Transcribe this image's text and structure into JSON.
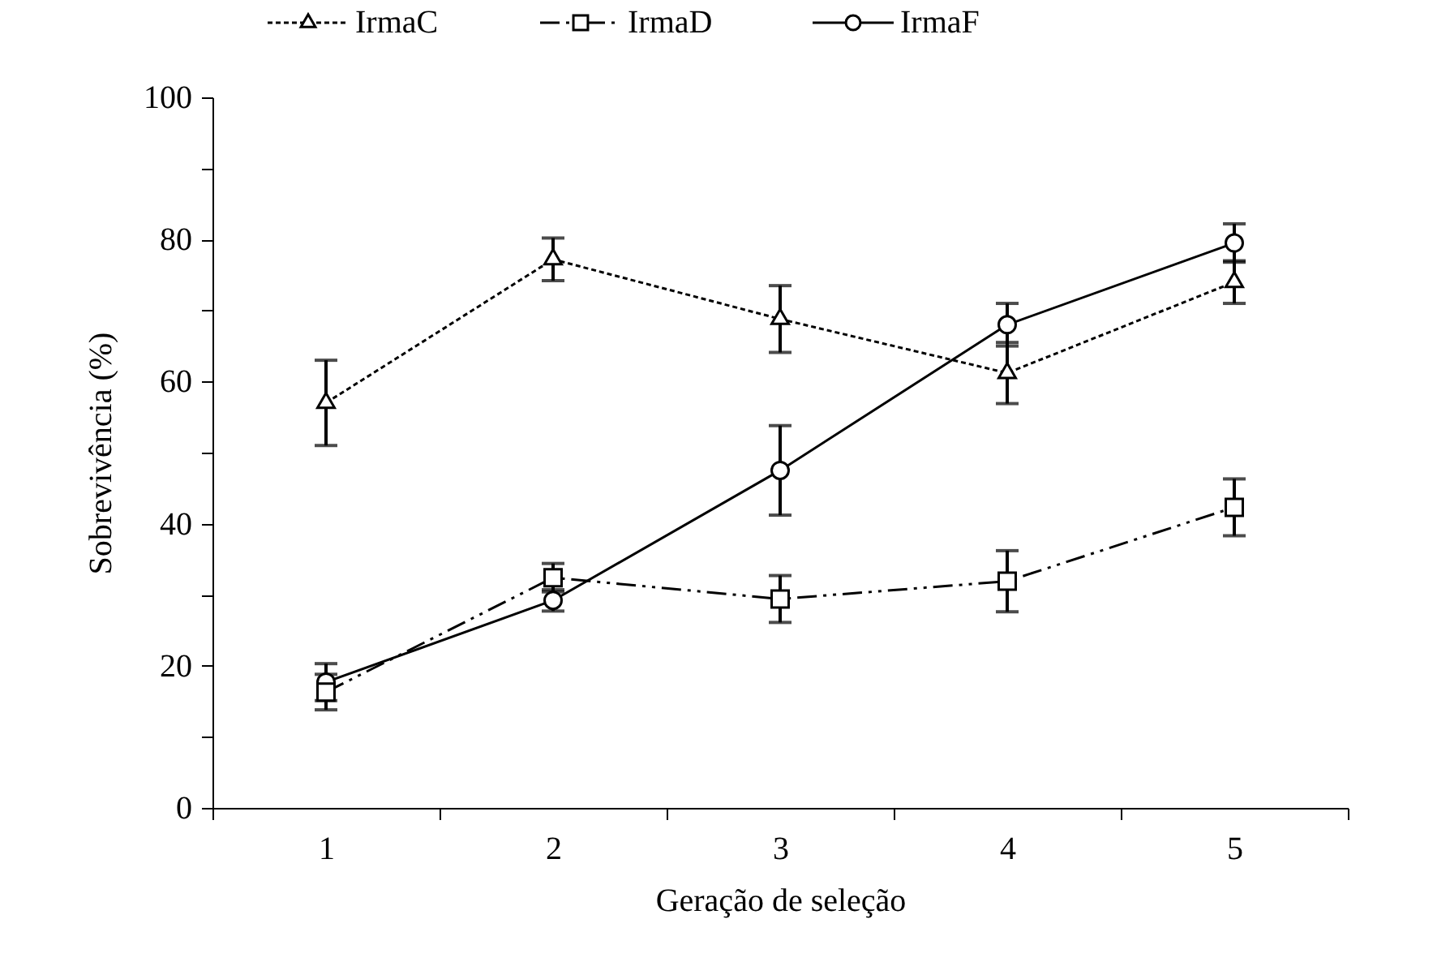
{
  "chart_data": {
    "type": "line",
    "xlabel": "Geração de seleção",
    "ylabel": "Sobrevivência  (%)",
    "categories": [
      "1",
      "2",
      "3",
      "4",
      "5"
    ],
    "series": [
      {
        "name": "IrmaC",
        "color": "#000000",
        "marker": "triangle",
        "line_style": "dotted",
        "values": [
          57,
          77.2,
          68.8,
          61.2,
          74
        ],
        "errors": [
          6,
          3,
          4.7,
          4.3,
          3
        ]
      },
      {
        "name": "IrmaD",
        "color": "#000000",
        "marker": "square",
        "line_style": "dashed",
        "values": [
          16.3,
          32.4,
          29.4,
          31.9,
          42.3
        ],
        "errors": [
          2.5,
          2,
          3.3,
          4.3,
          4
        ]
      },
      {
        "name": "IrmaF",
        "color": "#000000",
        "marker": "circle",
        "line_style": "solid",
        "values": [
          17.7,
          29.2,
          47.5,
          68,
          79.5
        ],
        "errors": [
          2.6,
          1.5,
          6.3,
          3,
          2.7
        ]
      }
    ],
    "ylim": [
      0,
      100
    ],
    "yticks": [
      0,
      {
        "value": 10,
        "label": null
      },
      20,
      {
        "value": 30,
        "label": null
      },
      40,
      {
        "value": 50,
        "label": null
      },
      60,
      {
        "value": 70,
        "label": null
      },
      80,
      {
        "value": 90,
        "label": null
      },
      100
    ],
    "grid": false,
    "legend": "top"
  }
}
